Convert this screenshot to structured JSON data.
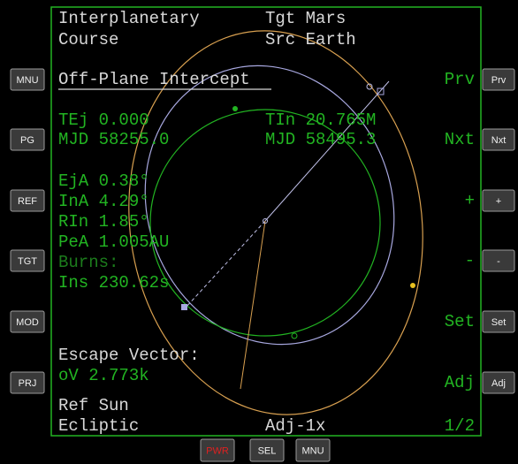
{
  "left_buttons": [
    "MNU",
    "PG",
    "REF",
    "TGT",
    "MOD",
    "PRJ"
  ],
  "right_buttons": [
    "Prv",
    "Nxt",
    "+",
    "-",
    "Set",
    "Adj"
  ],
  "bottom_buttons": [
    "PWR",
    "SEL",
    "MNU"
  ],
  "display": {
    "title": [
      "Interplanetary",
      "Course"
    ],
    "target": "Tgt Mars",
    "source": "Src Earth",
    "mode": "Off-Plane Intercept",
    "eject_time": "TEj 0.000",
    "intercept_time": "TIn 20.765M",
    "eject_mjd": "MJD 58255.0",
    "intercept_mjd": "MJD 58495.3",
    "params": [
      "EjA 0.38°",
      "InA 4.29°",
      "RIn 1.85°",
      "PeA 1.005AU"
    ],
    "burns_label": "Burns:",
    "insertion": "Ins 230.62s",
    "escape_label": "Escape Vector:",
    "escape_value": "oV  2.773k",
    "ref": [
      "Ref Sun",
      "Ecliptic"
    ],
    "adjust": "Adj-1x",
    "page": "1/2",
    "side_labels": [
      "Prv",
      "Nxt",
      "+",
      "-",
      "Set",
      "Adj"
    ]
  }
}
